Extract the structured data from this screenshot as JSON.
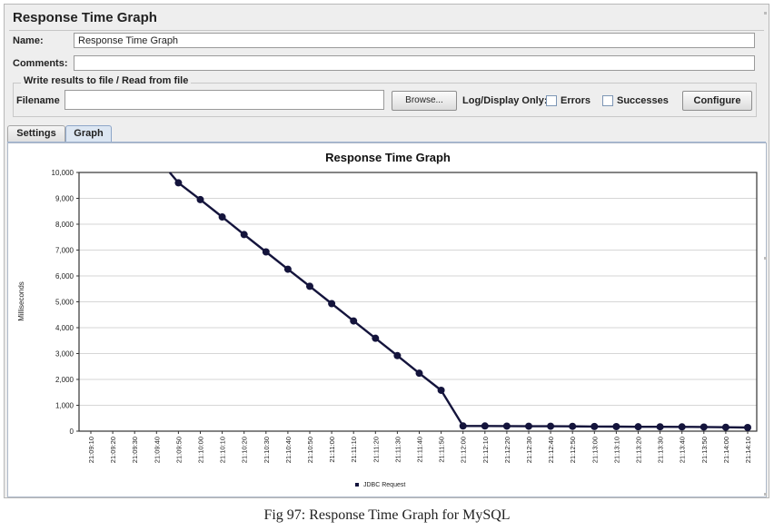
{
  "panel": {
    "title": "Response Time Graph",
    "name_label": "Name:",
    "name_value": "Response Time Graph",
    "comments_label": "Comments:",
    "comments_value": ""
  },
  "file_group": {
    "title": "Write results to file / Read from file",
    "filename_label": "Filename",
    "filename_value": "",
    "browse_label": "Browse...",
    "log_display_label": "Log/Display Only:",
    "errors_label": "Errors",
    "errors_checked": false,
    "successes_label": "Successes",
    "successes_checked": false,
    "configure_label": "Configure"
  },
  "tabs": [
    {
      "label": "Settings",
      "active": false
    },
    {
      "label": "Graph",
      "active": true
    }
  ],
  "caption": "Fig 97: Response Time Graph for MySQL",
  "colors": {
    "series": "#14143c",
    "grid": "#c8c8c8",
    "tab_active": "#dce6f2"
  },
  "chart_data": {
    "type": "line",
    "title": "Response Time Graph",
    "xlabel": "",
    "ylabel": "Milliseconds",
    "ylim": [
      0,
      10000
    ],
    "yticks": [
      "0",
      "1,000",
      "2,000",
      "3,000",
      "4,000",
      "5,000",
      "6,000",
      "7,000",
      "8,000",
      "9,000",
      "10,000"
    ],
    "legend_position": "bottom-center",
    "grid": true,
    "x": [
      "21:09:10",
      "21:09:20",
      "21:09:30",
      "21:09:40",
      "21:09:50",
      "21:10:00",
      "21:10:10",
      "21:10:20",
      "21:10:30",
      "21:10:40",
      "21:10:50",
      "21:11:00",
      "21:11:10",
      "21:11:20",
      "21:11:30",
      "21:11:40",
      "21:11:50",
      "21:12:00",
      "21:12:10",
      "21:12:20",
      "21:12:30",
      "21:12:40",
      "21:12:50",
      "21:13:00",
      "21:13:10",
      "21:13:20",
      "21:13:30",
      "21:13:40",
      "21:13:50",
      "21:14:00",
      "21:14:10"
    ],
    "series": [
      {
        "name": "JDBC Request",
        "values": [
          null,
          null,
          null,
          null,
          9600,
          8950,
          8280,
          7600,
          6930,
          6260,
          5600,
          4930,
          4260,
          3590,
          2920,
          2240,
          1580,
          200,
          200,
          195,
          190,
          190,
          185,
          180,
          175,
          170,
          168,
          165,
          160,
          150,
          140
        ],
        "lead_in": {
          "x_index": 3.6,
          "y": 10000
        }
      }
    ]
  }
}
